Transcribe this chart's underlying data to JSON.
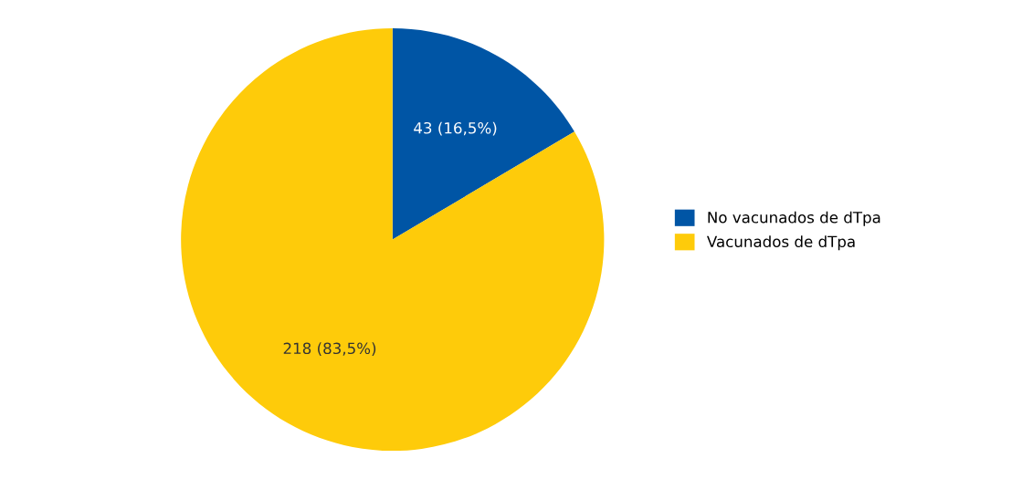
{
  "chart_data": {
    "type": "pie",
    "categories": [
      "No vacunados de dTpa",
      "Vacunados de dTpa"
    ],
    "values": [
      43,
      218
    ],
    "colors": [
      "#0055a5",
      "#fecb0a"
    ],
    "value_labels": [
      "43 (16,5%)",
      "218 (83,5%)"
    ],
    "legend": "right"
  }
}
